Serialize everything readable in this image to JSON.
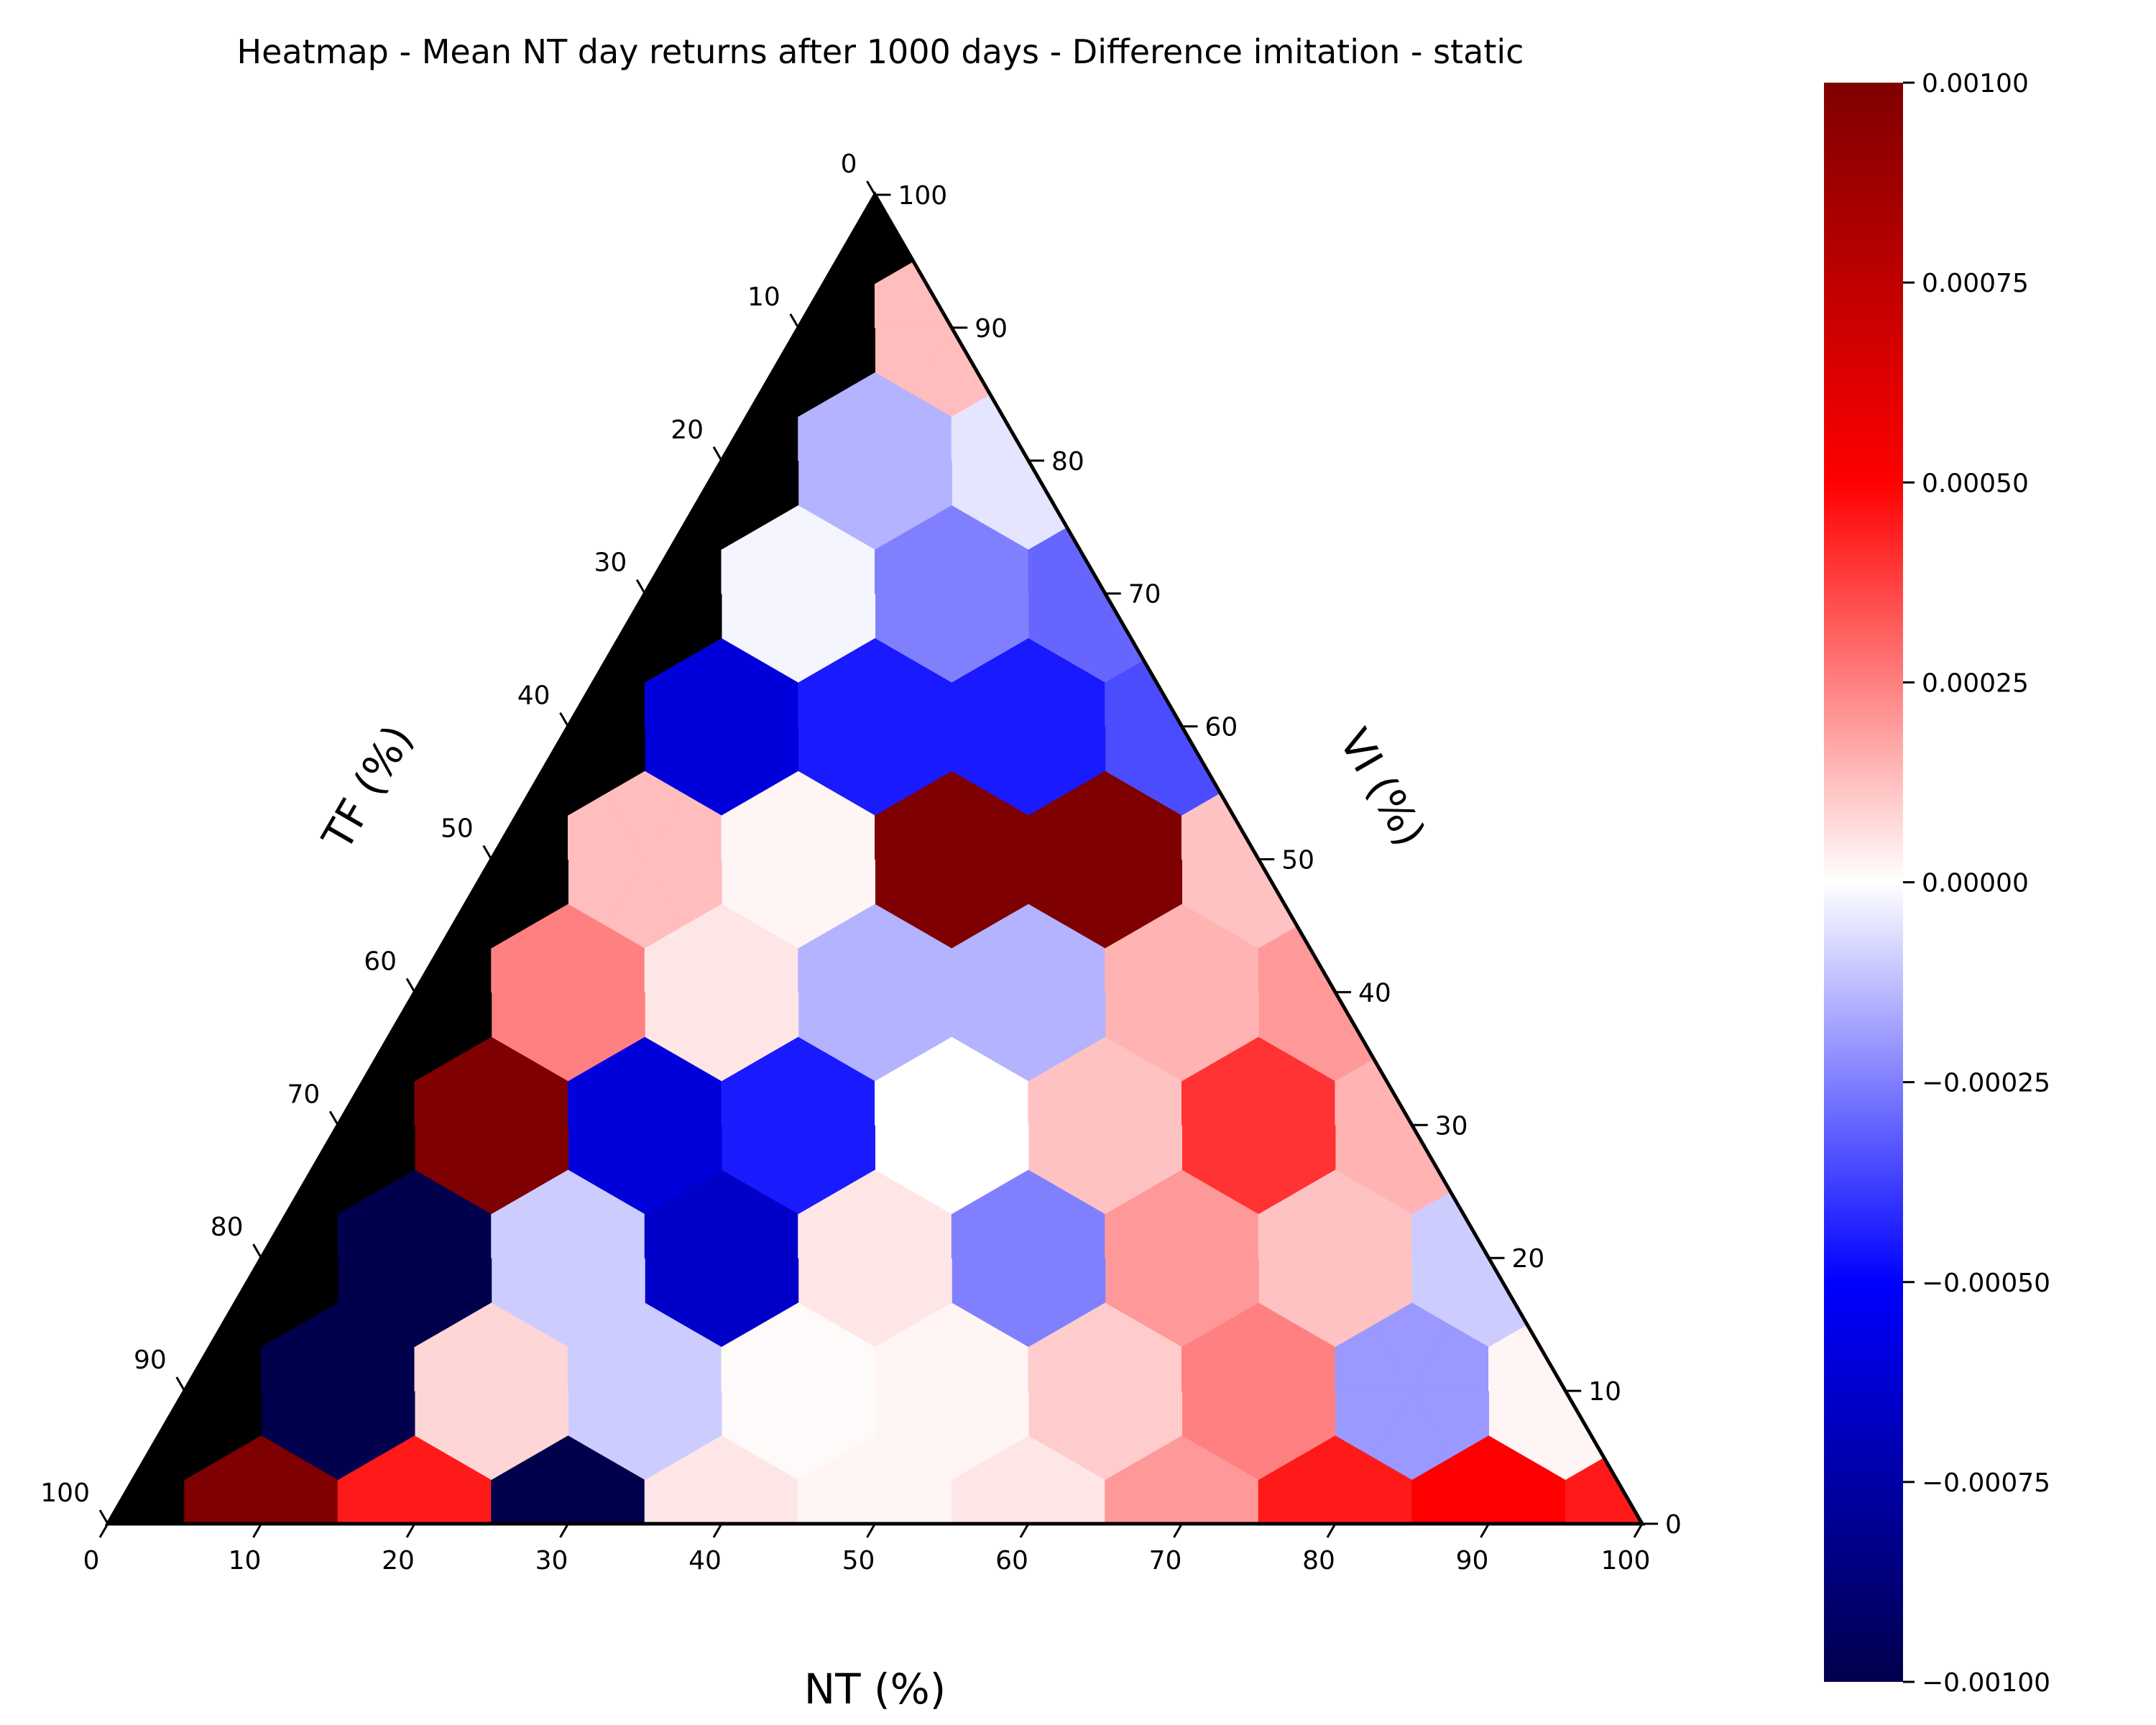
{
  "chart_data": {
    "type": "heatmap",
    "subtype": "ternary",
    "title": "Heatmap - Mean NT day returns after 1000 days - Difference imitation - static",
    "axes": {
      "bottom": {
        "label": "NT (%)",
        "ticks": [
          "0",
          "10",
          "20",
          "30",
          "40",
          "50",
          "60",
          "70",
          "80",
          "90",
          "100"
        ]
      },
      "left": {
        "label": "TF (%)",
        "ticks": [
          "0",
          "10",
          "20",
          "30",
          "40",
          "50",
          "60",
          "70",
          "80",
          "90",
          "100"
        ]
      },
      "right": {
        "label": "VI (%)",
        "ticks": [
          "0",
          "10",
          "20",
          "30",
          "40",
          "50",
          "60",
          "70",
          "80",
          "90",
          "100"
        ]
      }
    },
    "colorbar": {
      "colormap": "seismic",
      "vmin": -0.001,
      "vmax": 0.001,
      "tick_values": [
        0.001,
        0.00075,
        0.0005,
        0.00025,
        0.0,
        -0.00025,
        -0.0005,
        -0.00075,
        -0.001
      ],
      "tick_labels": [
        "0.00100",
        "0.00075",
        "0.00050",
        "0.00025",
        "0.00000",
        "−0.00025",
        "−0.00050",
        "−0.00075",
        "−0.00100"
      ]
    },
    "masked_color": "#000000",
    "grid_step": 10,
    "value_note": "values keyed by [NT, VI]; TF = 100 - NT - VI; null = masked (black)",
    "points": [
      [
        0,
        0,
        null
      ],
      [
        0,
        10,
        null
      ],
      [
        0,
        20,
        null
      ],
      [
        0,
        30,
        null
      ],
      [
        0,
        40,
        null
      ],
      [
        0,
        50,
        null
      ],
      [
        0,
        60,
        null
      ],
      [
        0,
        70,
        null
      ],
      [
        0,
        80,
        null
      ],
      [
        0,
        90,
        null
      ],
      [
        0,
        100,
        null
      ],
      [
        10,
        0,
        0.001
      ],
      [
        10,
        10,
        -0.001
      ],
      [
        10,
        20,
        -0.001
      ],
      [
        10,
        30,
        0.001
      ],
      [
        10,
        40,
        0.00025
      ],
      [
        10,
        50,
        0.00013
      ],
      [
        10,
        60,
        -0.0006
      ],
      [
        10,
        70,
        -2e-05
      ],
      [
        10,
        80,
        -0.00015
      ],
      [
        10,
        90,
        0.00013
      ],
      [
        20,
        0,
        0.00045
      ],
      [
        20,
        10,
        8e-05
      ],
      [
        20,
        20,
        -0.0001
      ],
      [
        20,
        30,
        -0.0006
      ],
      [
        20,
        40,
        5e-05
      ],
      [
        20,
        50,
        2e-05
      ],
      [
        20,
        60,
        -0.00045
      ],
      [
        20,
        70,
        -0.00025
      ],
      [
        20,
        80,
        -5e-05
      ],
      [
        30,
        0,
        -0.001
      ],
      [
        30,
        10,
        -0.0001
      ],
      [
        30,
        20,
        -0.00065
      ],
      [
        30,
        30,
        -0.00045
      ],
      [
        30,
        40,
        -0.00015
      ],
      [
        30,
        50,
        0.001
      ],
      [
        30,
        60,
        -0.00045
      ],
      [
        30,
        70,
        -0.0003
      ],
      [
        40,
        0,
        5e-05
      ],
      [
        40,
        10,
        1e-05
      ],
      [
        40,
        20,
        5e-05
      ],
      [
        40,
        30,
        0.0
      ],
      [
        40,
        40,
        -0.00015
      ],
      [
        40,
        50,
        0.001
      ],
      [
        40,
        60,
        -0.00035
      ],
      [
        50,
        0,
        2e-05
      ],
      [
        50,
        10,
        2e-05
      ],
      [
        50,
        20,
        -0.00025
      ],
      [
        50,
        30,
        0.00012
      ],
      [
        50,
        40,
        0.00015
      ],
      [
        50,
        50,
        0.00012
      ],
      [
        60,
        0,
        5e-05
      ],
      [
        60,
        10,
        0.0001
      ],
      [
        60,
        20,
        0.0002
      ],
      [
        60,
        30,
        0.0004
      ],
      [
        60,
        40,
        0.0002
      ],
      [
        70,
        0,
        0.0002
      ],
      [
        70,
        10,
        0.00025
      ],
      [
        70,
        20,
        0.00012
      ],
      [
        70,
        30,
        0.00015
      ],
      [
        80,
        0,
        0.00045
      ],
      [
        80,
        10,
        -0.0002
      ],
      [
        80,
        20,
        -0.0001
      ],
      [
        90,
        0,
        0.0005
      ],
      [
        90,
        10,
        2e-05
      ],
      [
        100,
        0,
        0.00045
      ]
    ]
  }
}
